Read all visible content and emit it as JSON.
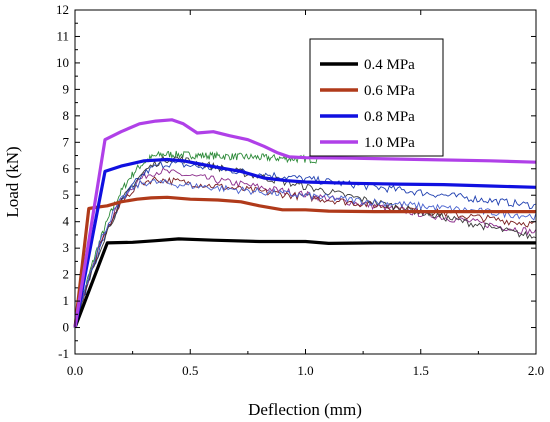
{
  "chart_data": {
    "type": "line",
    "xlabel": "Deflection (mm)",
    "ylabel": "Load (kN)",
    "xlim": [
      0,
      2.0
    ],
    "ylim": [
      -1,
      12
    ],
    "xticks": [
      "0.0",
      "0.5",
      "1.0",
      "1.5",
      "2.0"
    ],
    "yticks": [
      "-1",
      "0",
      "1",
      "2",
      "3",
      "4",
      "5",
      "6",
      "7",
      "8",
      "9",
      "10",
      "11",
      "12"
    ],
    "grid": false,
    "legend_position": "top-right",
    "series": [
      {
        "name": "0.4 MPa",
        "color": "#000000",
        "x": [
          0.0,
          0.14,
          0.25,
          0.35,
          0.45,
          0.6,
          0.8,
          1.0,
          1.1,
          1.3,
          1.5,
          1.7,
          2.0
        ],
        "y": [
          0.0,
          3.2,
          3.22,
          3.28,
          3.35,
          3.3,
          3.25,
          3.25,
          3.18,
          3.2,
          3.2,
          3.2,
          3.2
        ]
      },
      {
        "name": "0.6 MPa",
        "color": "#b03a1a",
        "x": [
          0.0,
          0.06,
          0.1,
          0.14,
          0.2,
          0.27,
          0.33,
          0.4,
          0.5,
          0.62,
          0.72,
          0.8,
          0.9,
          1.0,
          1.1,
          1.3,
          1.5,
          1.7,
          2.0
        ],
        "y": [
          0.0,
          4.5,
          4.55,
          4.6,
          4.75,
          4.85,
          4.9,
          4.92,
          4.85,
          4.82,
          4.75,
          4.6,
          4.45,
          4.45,
          4.4,
          4.38,
          4.38,
          4.38,
          4.38
        ]
      },
      {
        "name": "0.8 MPa",
        "color": "#1010e0",
        "x": [
          0.0,
          0.13,
          0.2,
          0.3,
          0.4,
          0.47,
          0.53,
          0.62,
          0.72,
          0.82,
          0.92,
          1.0,
          1.2,
          1.4,
          1.6,
          1.8,
          2.0
        ],
        "y": [
          0.0,
          5.9,
          6.1,
          6.3,
          6.35,
          6.3,
          6.2,
          6.05,
          5.9,
          5.65,
          5.55,
          5.5,
          5.45,
          5.42,
          5.4,
          5.35,
          5.3
        ]
      },
      {
        "name": "1.0 MPa",
        "color": "#b040e8",
        "x": [
          0.0,
          0.13,
          0.2,
          0.28,
          0.35,
          0.42,
          0.47,
          0.53,
          0.6,
          0.67,
          0.75,
          0.82,
          0.88,
          0.93,
          1.0,
          1.2,
          1.5,
          1.8,
          2.0
        ],
        "y": [
          0.0,
          7.1,
          7.4,
          7.7,
          7.8,
          7.85,
          7.7,
          7.35,
          7.4,
          7.25,
          7.1,
          6.85,
          6.6,
          6.45,
          6.42,
          6.4,
          6.35,
          6.3,
          6.25
        ]
      }
    ]
  }
}
